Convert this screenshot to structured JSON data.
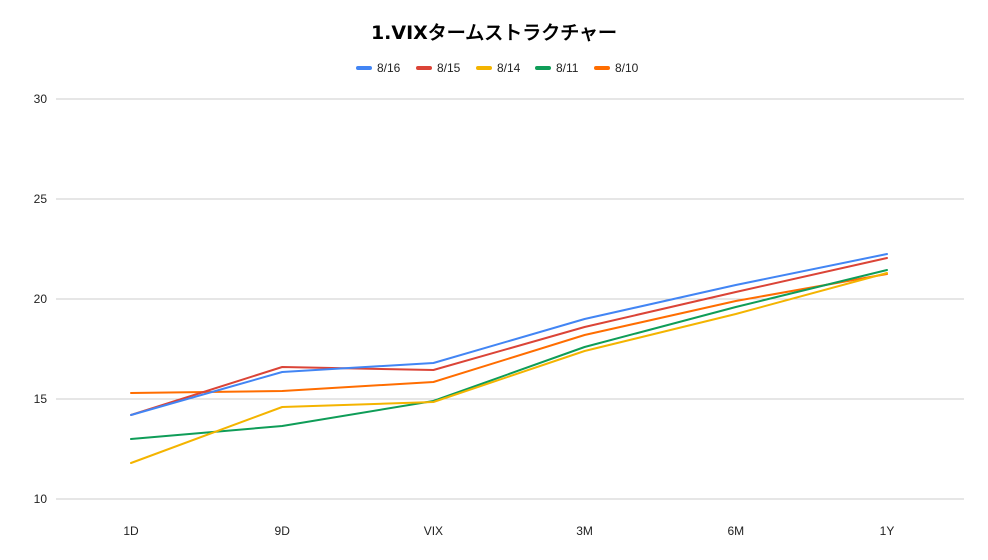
{
  "chart_data": {
    "type": "line",
    "title": "1.VIXタームストラクチャー",
    "xlabel": "",
    "ylabel": "",
    "categories": [
      "1D",
      "9D",
      "VIX",
      "3M",
      "6M",
      "1Y"
    ],
    "ylim": [
      10,
      30
    ],
    "yticks": [
      10,
      15,
      20,
      25,
      30
    ],
    "grid": true,
    "legend_position": "top",
    "series": [
      {
        "name": "8/16",
        "color": "#4285f4",
        "values": [
          14.2,
          16.35,
          16.8,
          19.0,
          20.7,
          22.25
        ]
      },
      {
        "name": "8/15",
        "color": "#db4437",
        "values": [
          14.2,
          16.6,
          16.45,
          18.6,
          20.35,
          22.05
        ]
      },
      {
        "name": "8/14",
        "color": "#f4b400",
        "values": [
          11.8,
          14.6,
          14.85,
          17.4,
          19.25,
          21.3
        ]
      },
      {
        "name": "8/11",
        "color": "#0f9d58",
        "values": [
          13.0,
          13.65,
          14.9,
          17.6,
          19.6,
          21.45
        ]
      },
      {
        "name": "8/10",
        "color": "#ff6d00",
        "values": [
          15.3,
          15.4,
          15.85,
          18.2,
          19.9,
          21.25
        ]
      }
    ]
  }
}
